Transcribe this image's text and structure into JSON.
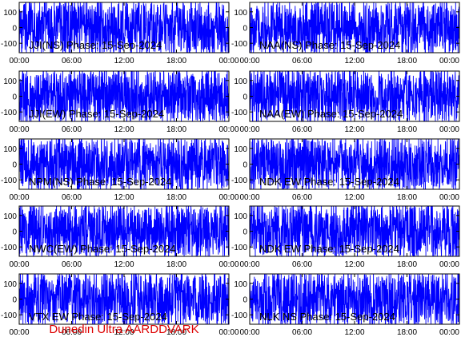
{
  "footer": {
    "text": "Dunedin Ultra AARDDVARK",
    "color": "#dd0000"
  },
  "style": {
    "trace_color": "#0000ff",
    "axis_color": "#000000",
    "background": "#ffffff"
  },
  "chart_data": [
    {
      "type": "line",
      "title": "JJI(NS) Phase: 15-Sep-2024",
      "xticks": [
        "00:00",
        "06:00",
        "12:00",
        "18:00",
        "00:00"
      ],
      "xlim": [
        0,
        24
      ],
      "yticks": [
        100,
        0,
        -100
      ],
      "ylim": [
        -160,
        160
      ],
      "grid": false,
      "amplitude": 0.85
    },
    {
      "type": "line",
      "title": "NAA(NS) Phase: 15-Sep-2024",
      "xticks": [
        "00:00",
        "06:00",
        "12:00",
        "18:00",
        "00:00"
      ],
      "xlim": [
        0,
        24
      ],
      "yticks": [
        100,
        0,
        -100
      ],
      "ylim": [
        -160,
        160
      ],
      "grid": false,
      "amplitude": 0.8
    },
    {
      "type": "line",
      "title": "JJI(EW) Phase: 15-Sep-2024",
      "xticks": [
        "00:00",
        "06:00",
        "12:00",
        "18:00",
        "00:00"
      ],
      "xlim": [
        0,
        24
      ],
      "yticks": [
        100,
        0,
        -100
      ],
      "ylim": [
        -160,
        160
      ],
      "grid": false,
      "amplitude": 0.85
    },
    {
      "type": "line",
      "title": "NAA(EW) Phase: 15-Sep-2024",
      "xticks": [
        "00:00",
        "06:00",
        "12:00",
        "18:00",
        "00:00"
      ],
      "xlim": [
        0,
        24
      ],
      "yticks": [
        100,
        0,
        -100
      ],
      "ylim": [
        -160,
        160
      ],
      "grid": false,
      "amplitude": 0.75
    },
    {
      "type": "line",
      "title": "NPM(NS) Phase: 15-Sep-2024",
      "xticks": [
        "00:00",
        "06:00",
        "12:00",
        "18:00",
        "00:00"
      ],
      "xlim": [
        0,
        24
      ],
      "yticks": [
        100,
        0,
        -100
      ],
      "ylim": [
        -160,
        160
      ],
      "grid": false,
      "amplitude": 0.8
    },
    {
      "type": "line",
      "title": "NDK EW Phase: 15-Sep-2024",
      "xticks": [
        "00:00",
        "06:00",
        "12:00",
        "18:00",
        "00:00"
      ],
      "xlim": [
        0,
        24
      ],
      "yticks": [
        100,
        0,
        -100
      ],
      "ylim": [
        -160,
        160
      ],
      "grid": false,
      "amplitude": 0.85
    },
    {
      "type": "line",
      "title": "NWC(EW) Phase: 15-Sep-2024",
      "xticks": [
        "00:00",
        "06:00",
        "12:00",
        "18:00",
        "00:00"
      ],
      "xlim": [
        0,
        24
      ],
      "yticks": [
        100,
        0,
        -100
      ],
      "ylim": [
        -160,
        160
      ],
      "grid": false,
      "amplitude": 0.8
    },
    {
      "type": "line",
      "title": "NDK EW Phase: 15-Sep-2024",
      "xticks": [
        "00:00",
        "06:00",
        "12:00",
        "18:00",
        "00:00"
      ],
      "xlim": [
        0,
        24
      ],
      "yticks": [
        100,
        0,
        -100
      ],
      "ylim": [
        -160,
        160
      ],
      "grid": false,
      "amplitude": 0.85
    },
    {
      "type": "line",
      "title": "VTX EW Phase: 15-Sep-2024",
      "xticks": [
        "00:00",
        "06:00",
        "12:00",
        "18:00",
        "00:00"
      ],
      "xlim": [
        0,
        24
      ],
      "yticks": [
        100,
        0,
        -100
      ],
      "ylim": [
        -160,
        160
      ],
      "grid": false,
      "amplitude": 0.8
    },
    {
      "type": "line",
      "title": "NLK NS Phase: 15-Sep-2024",
      "xticks": [
        "00:00",
        "06:00",
        "12:00",
        "18:00",
        "00:00"
      ],
      "xlim": [
        0,
        24
      ],
      "yticks": [
        100,
        0,
        -100
      ],
      "ylim": [
        -160,
        160
      ],
      "grid": false,
      "amplitude": 0.7
    }
  ]
}
